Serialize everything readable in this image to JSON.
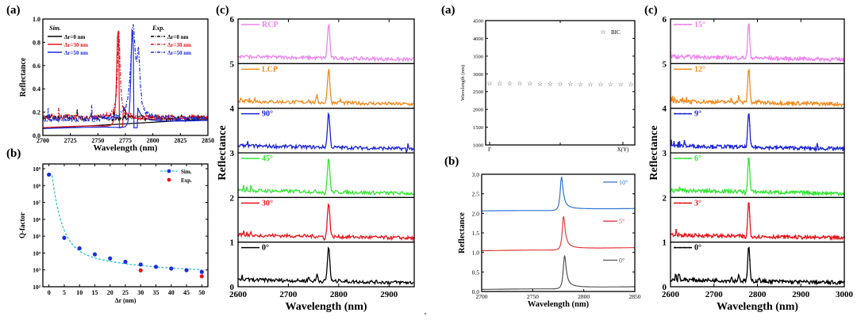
{
  "figures": [
    {
      "panels": [
        "(a)",
        "(b)",
        "(c)"
      ]
    },
    {
      "panels": [
        "(a)",
        "(b)",
        "(c)"
      ]
    }
  ],
  "chart_data": [
    {
      "id": "fig1a",
      "panel_label": "(a)",
      "type": "line",
      "xlabel": "Wavelength (nm)",
      "ylabel": "Reflectance",
      "xlim": [
        2700,
        2850
      ],
      "ylim": [
        0.0,
        1.0
      ],
      "xticks": [
        2700,
        2725,
        2750,
        2775,
        2800,
        2825,
        2850
      ],
      "yticks": [
        "0.0",
        "0.2",
        "0.4",
        "0.6",
        "0.8",
        "1.0"
      ],
      "legend_groups": [
        {
          "title": "Sim.",
          "placement": "top-left"
        },
        {
          "title": "Exp.",
          "placement": "top-right"
        }
      ],
      "series": [
        {
          "name": "Δr=0 nm",
          "group": "Sim.",
          "color": "#000000",
          "style": "solid",
          "peak": null,
          "baseline": [
            0.06,
            0.14
          ]
        },
        {
          "name": "Δr=30 nm",
          "group": "Sim.",
          "color": "#e8141b",
          "style": "solid",
          "peak": [
            2768,
            0.9
          ],
          "baseline": [
            0.05,
            0.13
          ]
        },
        {
          "name": "Δr=50 nm",
          "group": "Sim.",
          "color": "#1a2de0",
          "style": "solid",
          "peak": [
            2781,
            0.93
          ],
          "baseline": [
            0.04,
            0.1
          ]
        },
        {
          "name": "Δr=0 nm",
          "group": "Exp.",
          "color": "#000000",
          "style": "dashdot",
          "peak": null,
          "baseline": [
            0.15,
            0.15
          ]
        },
        {
          "name": "Δr=30 nm",
          "group": "Exp.",
          "color": "#e8141b",
          "style": "dashdot",
          "peak": [
            2769,
            0.9
          ],
          "baseline": [
            0.16,
            0.15
          ]
        },
        {
          "name": "Δr=50 nm",
          "group": "Exp.",
          "color": "#1a2de0",
          "style": "dashdot",
          "peak": [
            2782,
            0.92
          ],
          "baseline": [
            0.14,
            0.14
          ]
        }
      ]
    },
    {
      "id": "fig1b",
      "panel_label": "(b)",
      "type": "scatter",
      "xlabel": "Δr (nm)",
      "ylabel": "Q-factor",
      "xlim": [
        -2,
        52
      ],
      "ylim_log10": [
        2,
        9
      ],
      "xticks": [
        0,
        5,
        10,
        15,
        20,
        25,
        30,
        35,
        40,
        45,
        50
      ],
      "yticks": [
        "10²",
        "10³",
        "10⁴",
        "10⁵",
        "10⁶",
        "10⁷",
        "10⁸",
        "10⁹"
      ],
      "legend_placement": "top-right",
      "series": [
        {
          "name": "Sim.",
          "color": "#1a2de0",
          "line_color": "#2bc4d4",
          "x": [
            0,
            5,
            10,
            15,
            20,
            25,
            30,
            35,
            40,
            45,
            50
          ],
          "log10_y": [
            8.65,
            4.9,
            4.28,
            3.92,
            3.68,
            3.48,
            3.32,
            3.18,
            3.08,
            2.98,
            2.88
          ]
        },
        {
          "name": "Exp.",
          "color": "#e8141b",
          "x": [
            30,
            50
          ],
          "log10_y": [
            2.97,
            2.62
          ]
        }
      ]
    },
    {
      "id": "fig1c",
      "panel_label": "(c)",
      "type": "line",
      "xlabel": "Wavelength (nm)",
      "ylabel": "Reflectance",
      "xlim": [
        2600,
        2950
      ],
      "ylim": [
        0,
        6
      ],
      "xticks": [
        2600,
        2700,
        2800,
        2900
      ],
      "yticks": [
        "0",
        "1",
        "2",
        "3",
        "4",
        "5",
        "6"
      ],
      "peak_wavelength": 2780,
      "series": [
        {
          "name": "RCP",
          "color": "#ee82ee",
          "offset": 5
        },
        {
          "name": "LCP",
          "color": "#f28b1e",
          "offset": 4
        },
        {
          "name": "90°",
          "color": "#1a22d8",
          "offset": 3
        },
        {
          "name": "45°",
          "color": "#32e632",
          "offset": 2
        },
        {
          "name": "30°",
          "color": "#e8141b",
          "offset": 1
        },
        {
          "name": "0°",
          "color": "#000000",
          "offset": 0
        }
      ]
    },
    {
      "id": "fig2a",
      "panel_label": "(a)",
      "type": "scatter",
      "xlabel": "",
      "ylabel": "Wavelength (nm)",
      "ylim": [
        1000,
        4500
      ],
      "xticks": [
        "Γ",
        "X(Y)"
      ],
      "yticks": [
        "1000",
        "1500",
        "2000",
        "2500",
        "3000",
        "3500",
        "4000",
        "4500"
      ],
      "legend_placement": "top-right",
      "series": [
        {
          "name": "BIC",
          "marker": "star",
          "y": [
            2740,
            2740,
            2738,
            2737,
            2735,
            2733,
            2730,
            2728,
            2725,
            2722,
            2720,
            2718,
            2717,
            2716,
            2715
          ]
        }
      ]
    },
    {
      "id": "fig2b",
      "panel_label": "(b)",
      "type": "line",
      "xlabel": "Wavelength (nm)",
      "ylabel": "Reflectance",
      "xlim": [
        2700,
        2850
      ],
      "ylim": [
        0.0,
        3.0
      ],
      "xticks": [
        2700,
        2750,
        2800,
        2850
      ],
      "yticks": [
        "0.0",
        "0.5",
        "1.0",
        "1.5",
        "2.0",
        "2.5",
        "3.0"
      ],
      "legend_placement": "right",
      "series": [
        {
          "name": "10°",
          "color": "#2f74d0",
          "offset": 2.0,
          "peak": [
            2778,
            2.93
          ],
          "baseline": [
            2.05,
            2.1
          ]
        },
        {
          "name": "5°",
          "color": "#e03c3c",
          "offset": 1.0,
          "peak": [
            2780,
            1.92
          ],
          "baseline": [
            1.03,
            1.1
          ]
        },
        {
          "name": "0°",
          "color": "#555555",
          "offset": 0.0,
          "peak": [
            2781,
            0.92
          ],
          "baseline": [
            0.04,
            0.1
          ]
        }
      ]
    },
    {
      "id": "fig2c",
      "panel_label": "(c)",
      "type": "line",
      "xlabel": "Wavelength (nm)",
      "ylabel": "Reflectance",
      "xlim": [
        2600,
        3000
      ],
      "ylim": [
        0,
        6
      ],
      "xticks": [
        2600,
        2700,
        2800,
        2900,
        3000
      ],
      "yticks": [
        "0",
        "1",
        "2",
        "3",
        "4",
        "5",
        "6"
      ],
      "peak_wavelength": 2780,
      "series": [
        {
          "name": "15°",
          "color": "#ee82ee",
          "offset": 5
        },
        {
          "name": "12°",
          "color": "#f28b1e",
          "offset": 4
        },
        {
          "name": "9°",
          "color": "#1a22d8",
          "offset": 3
        },
        {
          "name": "6°",
          "color": "#32e632",
          "offset": 2
        },
        {
          "name": "3°",
          "color": "#e8141b",
          "offset": 1
        },
        {
          "name": "0°",
          "color": "#000000",
          "offset": 0
        }
      ]
    }
  ]
}
